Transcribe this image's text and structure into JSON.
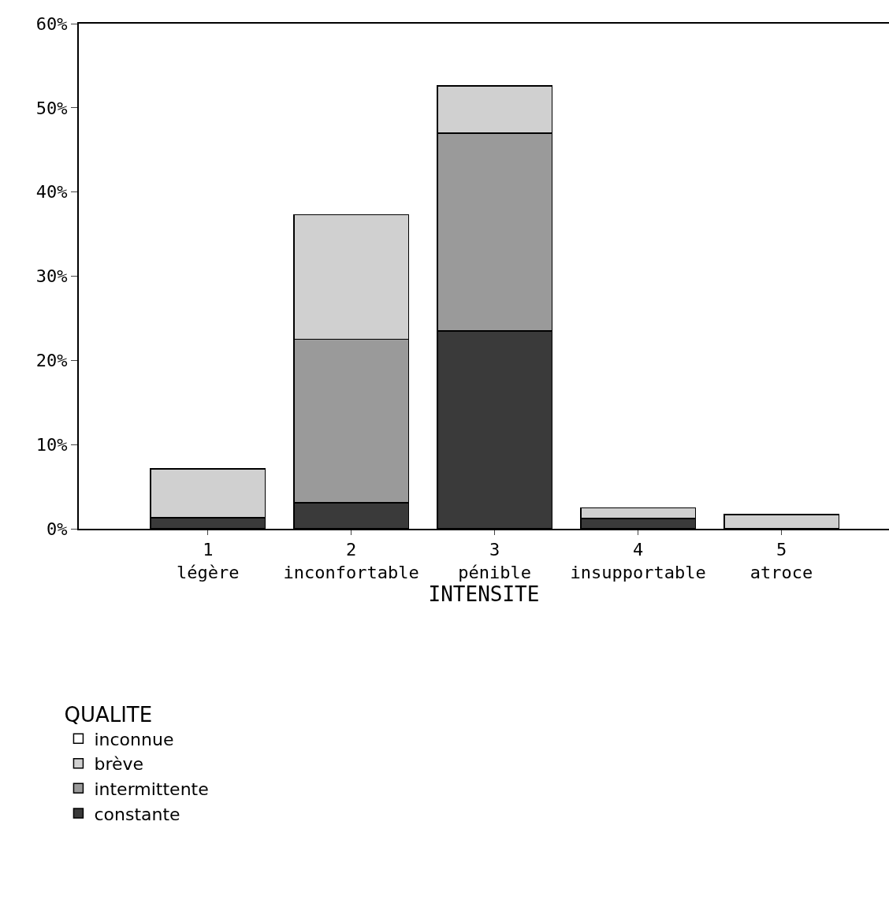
{
  "chart_data": {
    "type": "bar",
    "stacked": true,
    "categories": [
      "1\nlégère",
      "2\ninconfortable",
      "3\npénible",
      "4\ninsupportable",
      "5\natroce"
    ],
    "series": [
      {
        "name": "constante",
        "color": "#3a3a3a",
        "values": [
          1.3,
          3.1,
          23.5,
          1.2,
          null
        ]
      },
      {
        "name": "intermittente",
        "color": "#9a9a9a",
        "values": [
          null,
          19.4,
          23.5,
          null,
          null
        ]
      },
      {
        "name": "brève",
        "color": "#d0d0d0",
        "values": [
          5.8,
          14.8,
          5.6,
          1.3,
          1.7
        ]
      },
      {
        "name": "inconnue",
        "color": "#ffffff",
        "values": [
          null,
          null,
          null,
          null,
          null
        ]
      }
    ],
    "xlabel": "INTENSITE",
    "legend_title": "QUALITE",
    "ylim": [
      0,
      60
    ],
    "yticks": [
      {
        "value": 0,
        "label": "0%"
      },
      {
        "value": 10,
        "label": "10%"
      },
      {
        "value": 20,
        "label": "20%"
      },
      {
        "value": 30,
        "label": "30%"
      },
      {
        "value": 40,
        "label": "40%"
      },
      {
        "value": 50,
        "label": "50%"
      },
      {
        "value": 60,
        "label": "60%"
      }
    ],
    "legend": "bottom left"
  }
}
